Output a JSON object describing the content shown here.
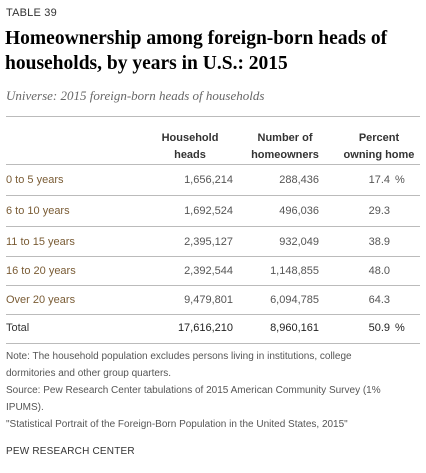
{
  "table_label": "TABLE 39",
  "title_lines": [
    "Homeownership among foreign-born heads of",
    "households, by years in U.S.: 2015"
  ],
  "subtitle": "Universe: 2015 foreign-born heads of households",
  "columns": [
    {
      "lines": [
        "Household",
        "heads"
      ]
    },
    {
      "lines": [
        "Number of",
        "homeowners"
      ]
    },
    {
      "lines": [
        "Percent",
        "owning home"
      ]
    }
  ],
  "rows": [
    {
      "label": "0 to 5 years",
      "heads": "1,656,214",
      "homeowners": "288,436",
      "percent": "17.4",
      "unit": "%"
    },
    {
      "label": "6 to 10 years",
      "heads": "1,692,524",
      "homeowners": "496,036",
      "percent": "29.3",
      "unit": ""
    },
    {
      "label": "11 to 15 years",
      "heads": "2,395,127",
      "homeowners": "932,049",
      "percent": "38.9",
      "unit": ""
    },
    {
      "label": "16 to 20 years",
      "heads": "2,392,544",
      "homeowners": "1,148,855",
      "percent": "48.0",
      "unit": ""
    },
    {
      "label": "Over 20 years",
      "heads": "9,479,801",
      "homeowners": "6,094,785",
      "percent": "64.3",
      "unit": ""
    }
  ],
  "total": {
    "label": "Total",
    "heads": "17,616,210",
    "homeowners": "8,960,161",
    "percent": "50.9",
    "unit": "%"
  },
  "notes": {
    "note_lines": [
      "Note: The household population excludes persons living in institutions, college",
      "dormitories and other group quarters."
    ],
    "source_lines": [
      "Source: Pew Research Center tabulations of 2015 American Community Survey (1%",
      "IPUMS)."
    ],
    "report_title": "\"Statistical Portrait of the Foreign-Born Population in the United States, 2015\""
  },
  "footer": "PEW RESEARCH CENTER",
  "colors": {
    "row_label": "#7a5c35",
    "divider": "#bbbbbb",
    "title": "#000000"
  }
}
